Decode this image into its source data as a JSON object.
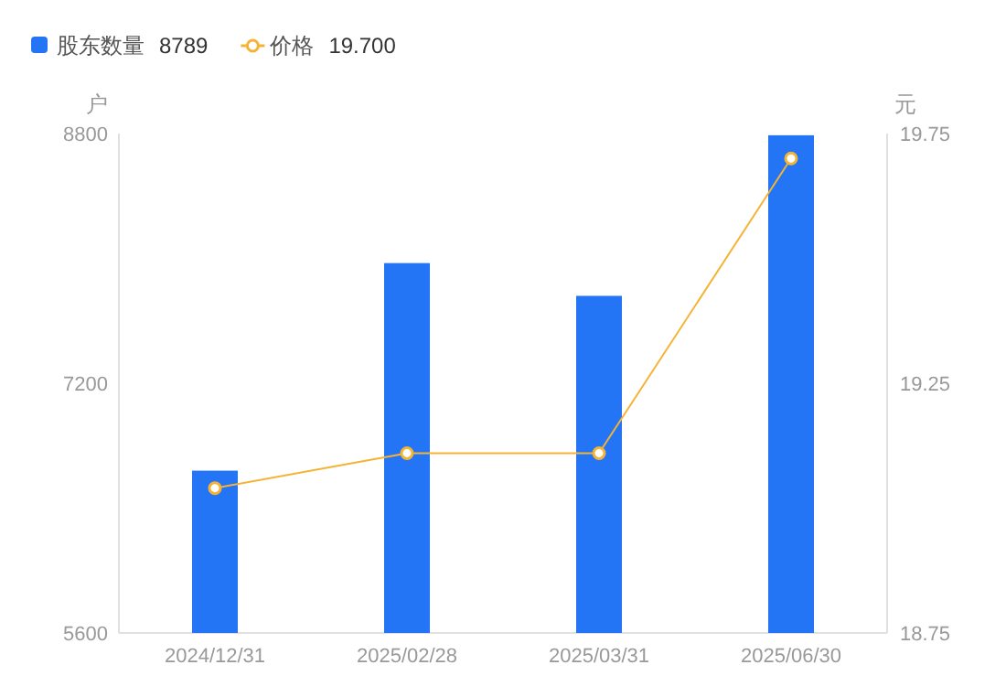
{
  "chart_data": {
    "type": "bar",
    "categories": [
      "2024/12/31",
      "2025/02/28",
      "2025/03/31",
      "2025/06/30"
    ],
    "ylabel": "户",
    "y2label": "元",
    "ylim": [
      5600,
      8800
    ],
    "yticks": [
      5600,
      7200,
      8800
    ],
    "y2lim": [
      18.75,
      19.75
    ],
    "y2ticks": [
      {
        "value": 18.75,
        "label": "18.75"
      },
      {
        "value": 19.25,
        "label": "19.25"
      },
      {
        "value": 19.75,
        "label": "19.75"
      }
    ],
    "legend": "top left",
    "marker": "circle",
    "series": [
      {
        "name": "股东数量",
        "color": "#2475f5",
        "values": [
          6640,
          7970,
          7760,
          8789
        ]
      },
      {
        "name": "价格",
        "type": "line",
        "axis": "y2",
        "color": "#f5b335",
        "values": [
          19.04,
          19.11,
          19.11,
          19.7
        ]
      }
    ],
    "annotations": [
      "8789",
      "19.700"
    ]
  }
}
